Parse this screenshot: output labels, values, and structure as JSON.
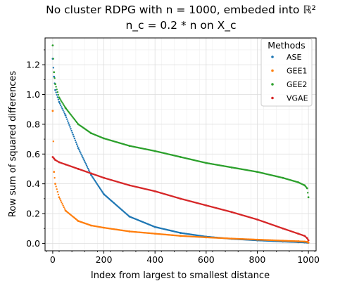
{
  "chart_data": {
    "type": "scatter",
    "title_lines": [
      "No cluster RDPG with n = 1000, embeded into ℝ²",
      "n_c = 0.2 * n on X_c"
    ],
    "xlabel": "Index from largest to smallest distance",
    "ylabel": "Row sum of squared differences",
    "xlim": [
      -30,
      1030
    ],
    "ylim": [
      -0.05,
      1.38
    ],
    "x_ticks": [
      0,
      200,
      400,
      600,
      800,
      1000
    ],
    "y_ticks": [
      0.0,
      0.2,
      0.4,
      0.6,
      0.8,
      1.0,
      1.2
    ],
    "grid": true,
    "legend": {
      "title": "Methods",
      "position": "top-right"
    },
    "x": [
      0,
      5,
      10,
      25,
      50,
      100,
      150,
      200,
      300,
      400,
      500,
      600,
      700,
      800,
      900,
      960,
      985,
      995,
      1000
    ],
    "series": [
      {
        "name": "ASE",
        "color": "#1f77b4",
        "values": [
          1.24,
          1.12,
          1.03,
          0.95,
          0.86,
          0.64,
          0.46,
          0.33,
          0.18,
          0.11,
          0.07,
          0.045,
          0.03,
          0.02,
          0.012,
          0.008,
          0.006,
          0.005,
          0.004
        ]
      },
      {
        "name": "GEE1",
        "color": "#ff7f0e",
        "values": [
          0.89,
          0.48,
          0.4,
          0.31,
          0.22,
          0.15,
          0.12,
          0.105,
          0.08,
          0.065,
          0.05,
          0.04,
          0.032,
          0.025,
          0.018,
          0.014,
          0.012,
          0.01,
          0.005
        ]
      },
      {
        "name": "GEE2",
        "color": "#2ca02c",
        "values": [
          1.33,
          1.15,
          1.07,
          0.98,
          0.91,
          0.8,
          0.74,
          0.705,
          0.655,
          0.62,
          0.58,
          0.54,
          0.51,
          0.48,
          0.44,
          0.41,
          0.39,
          0.37,
          0.31
        ]
      },
      {
        "name": "VGAE",
        "color": "#d62728",
        "values": [
          0.58,
          0.57,
          0.56,
          0.545,
          0.53,
          0.5,
          0.47,
          0.44,
          0.39,
          0.35,
          0.3,
          0.255,
          0.21,
          0.16,
          0.1,
          0.065,
          0.05,
          0.035,
          0.02
        ]
      }
    ]
  }
}
